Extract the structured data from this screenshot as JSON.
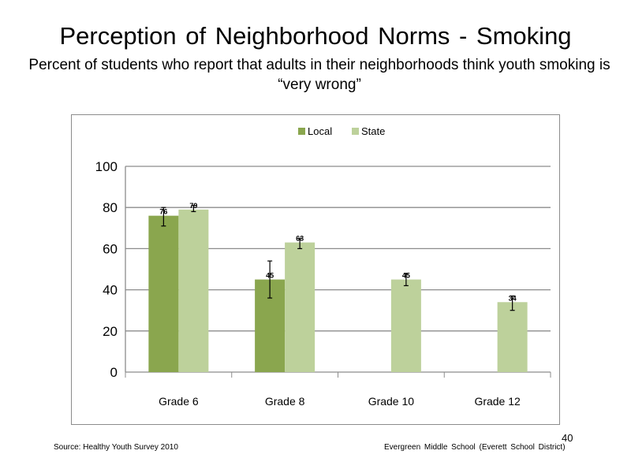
{
  "slide": {
    "title": "Perception of Neighborhood  Norms - Smoking",
    "subtitle": "Percent of students who report that adults in their neighborhoods think youth smoking is “very wrong”",
    "source": "Source: Healthy Youth Survey 2010",
    "school": "Evergreen Middle  School (Everett School District)",
    "slide_number": "40"
  },
  "chart_data": {
    "type": "bar",
    "categories": [
      "Grade 6",
      "Grade 8",
      "Grade 10",
      "Grade 12"
    ],
    "series": [
      {
        "name": "Local",
        "color": "#8aa64e",
        "values": [
          76,
          45,
          null,
          null
        ],
        "labels": [
          "76",
          "45",
          "",
          ""
        ],
        "error_low": [
          71,
          36,
          null,
          null
        ],
        "error_high": [
          80,
          54,
          null,
          null
        ]
      },
      {
        "name": "State",
        "color": "#bdd19b",
        "values": [
          79,
          63,
          45,
          34
        ],
        "labels": [
          "79",
          "63",
          "45",
          "34"
        ],
        "error_low": [
          78,
          60,
          42,
          30
        ],
        "error_high": [
          81,
          65,
          48,
          37
        ]
      }
    ],
    "ylim": [
      0,
      100
    ],
    "yticks": [
      "0",
      "20",
      "40",
      "60",
      "80",
      "100"
    ],
    "grid": true,
    "legend_position": "top-center",
    "xlabel": "",
    "ylabel": ""
  }
}
